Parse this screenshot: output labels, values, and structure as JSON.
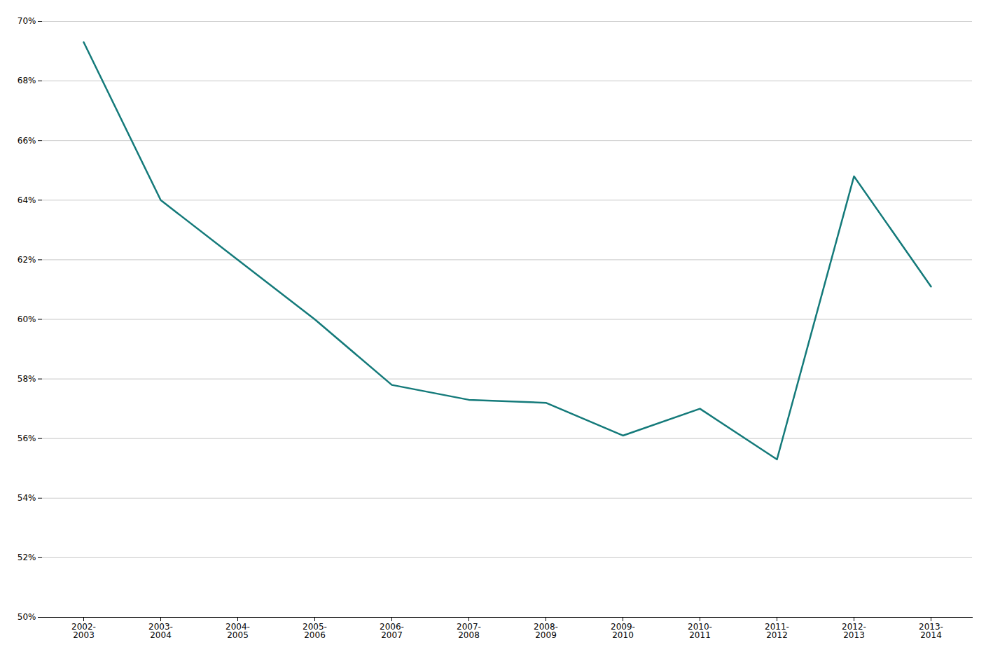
{
  "chart_data": {
    "type": "line",
    "categories": [
      "2002-\n2003",
      "2003-\n2004",
      "2004-\n2005",
      "2005-\n2006",
      "2006-\n2007",
      "2007-\n2008",
      "2008-\n2009",
      "2009-\n2010",
      "2010-\n2011",
      "2011-\n2012",
      "2012-\n2013",
      "2013-\n2014"
    ],
    "values": [
      69.3,
      64.0,
      62.0,
      60.0,
      57.8,
      57.3,
      57.2,
      56.1,
      57.0,
      55.3,
      64.8,
      61.1
    ],
    "color": "#147a7a",
    "ylim": [
      50,
      70
    ],
    "yticks": [
      {
        "value": 50,
        "label": "50%"
      },
      {
        "value": 52,
        "label": "52%"
      },
      {
        "value": 54,
        "label": "54%"
      },
      {
        "value": 56,
        "label": "56%"
      },
      {
        "value": 58,
        "label": "58%"
      },
      {
        "value": 60,
        "label": "60%"
      },
      {
        "value": 62,
        "label": "62%"
      },
      {
        "value": 64,
        "label": "64%"
      },
      {
        "value": 66,
        "label": "66%"
      },
      {
        "value": 68,
        "label": "68%"
      },
      {
        "value": 70,
        "label": "70%"
      }
    ],
    "grid": true
  }
}
